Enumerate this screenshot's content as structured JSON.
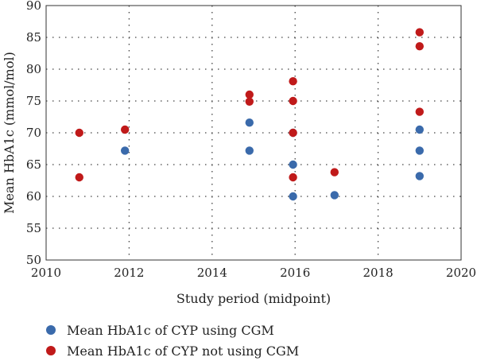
{
  "chart_data": {
    "type": "scatter",
    "title": "",
    "xlabel": "Study period (midpoint)",
    "ylabel": "Mean HbA1c (mmol/mol)",
    "xlim": [
      2010,
      2020
    ],
    "ylim": [
      50,
      90
    ],
    "xticks": [
      2010,
      2012,
      2014,
      2016,
      2018,
      2020
    ],
    "yticks": [
      50,
      55,
      60,
      65,
      70,
      75,
      80,
      85,
      90
    ],
    "grid": "dotted",
    "legend_position": "bottom",
    "series": [
      {
        "name": "Mean HbA1c of CYP using CGM",
        "color": "#3a6aab",
        "points": [
          [
            2011.9,
            67.2
          ],
          [
            2014.9,
            71.6
          ],
          [
            2014.9,
            67.2
          ],
          [
            2015.95,
            70.0
          ],
          [
            2015.95,
            65.0
          ],
          [
            2015.95,
            60.0
          ],
          [
            2016.95,
            60.2
          ],
          [
            2019.0,
            70.5
          ],
          [
            2019.0,
            67.2
          ],
          [
            2019.0,
            63.2
          ]
        ]
      },
      {
        "name": "Mean HbA1c of CYP not using CGM",
        "color": "#c01a1a",
        "points": [
          [
            2010.8,
            70.0
          ],
          [
            2010.8,
            63.0
          ],
          [
            2011.9,
            70.5
          ],
          [
            2014.9,
            76.0
          ],
          [
            2014.9,
            74.9
          ],
          [
            2015.95,
            78.1
          ],
          [
            2015.95,
            75.0
          ],
          [
            2015.95,
            70.0
          ],
          [
            2015.95,
            63.0
          ],
          [
            2016.95,
            63.8
          ],
          [
            2019.0,
            85.8
          ],
          [
            2019.0,
            83.6
          ],
          [
            2019.0,
            73.3
          ]
        ]
      }
    ]
  }
}
